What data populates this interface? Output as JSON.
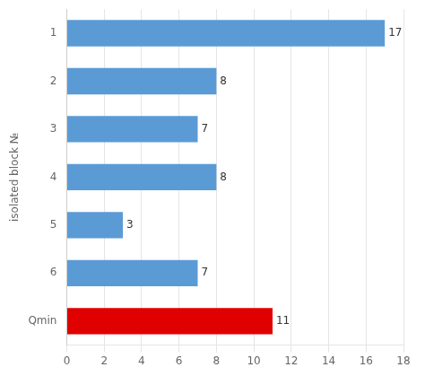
{
  "chart_data": {
    "type": "bar",
    "orientation": "horizontal",
    "categories": [
      "Qmin",
      "6",
      "5",
      "4",
      "3",
      "2",
      "1"
    ],
    "values": [
      11,
      7,
      3,
      8,
      7,
      8,
      17
    ],
    "colors": [
      "#e00000",
      "#5b9bd5",
      "#5b9bd5",
      "#5b9bd5",
      "#5b9bd5",
      "#5b9bd5",
      "#5b9bd5"
    ],
    "ylabel": "isolated block №",
    "xlim": [
      0,
      18
    ],
    "xticks": [
      0,
      2,
      4,
      6,
      8,
      10,
      12,
      14,
      16,
      18
    ],
    "grid": true,
    "data_labels": true
  }
}
